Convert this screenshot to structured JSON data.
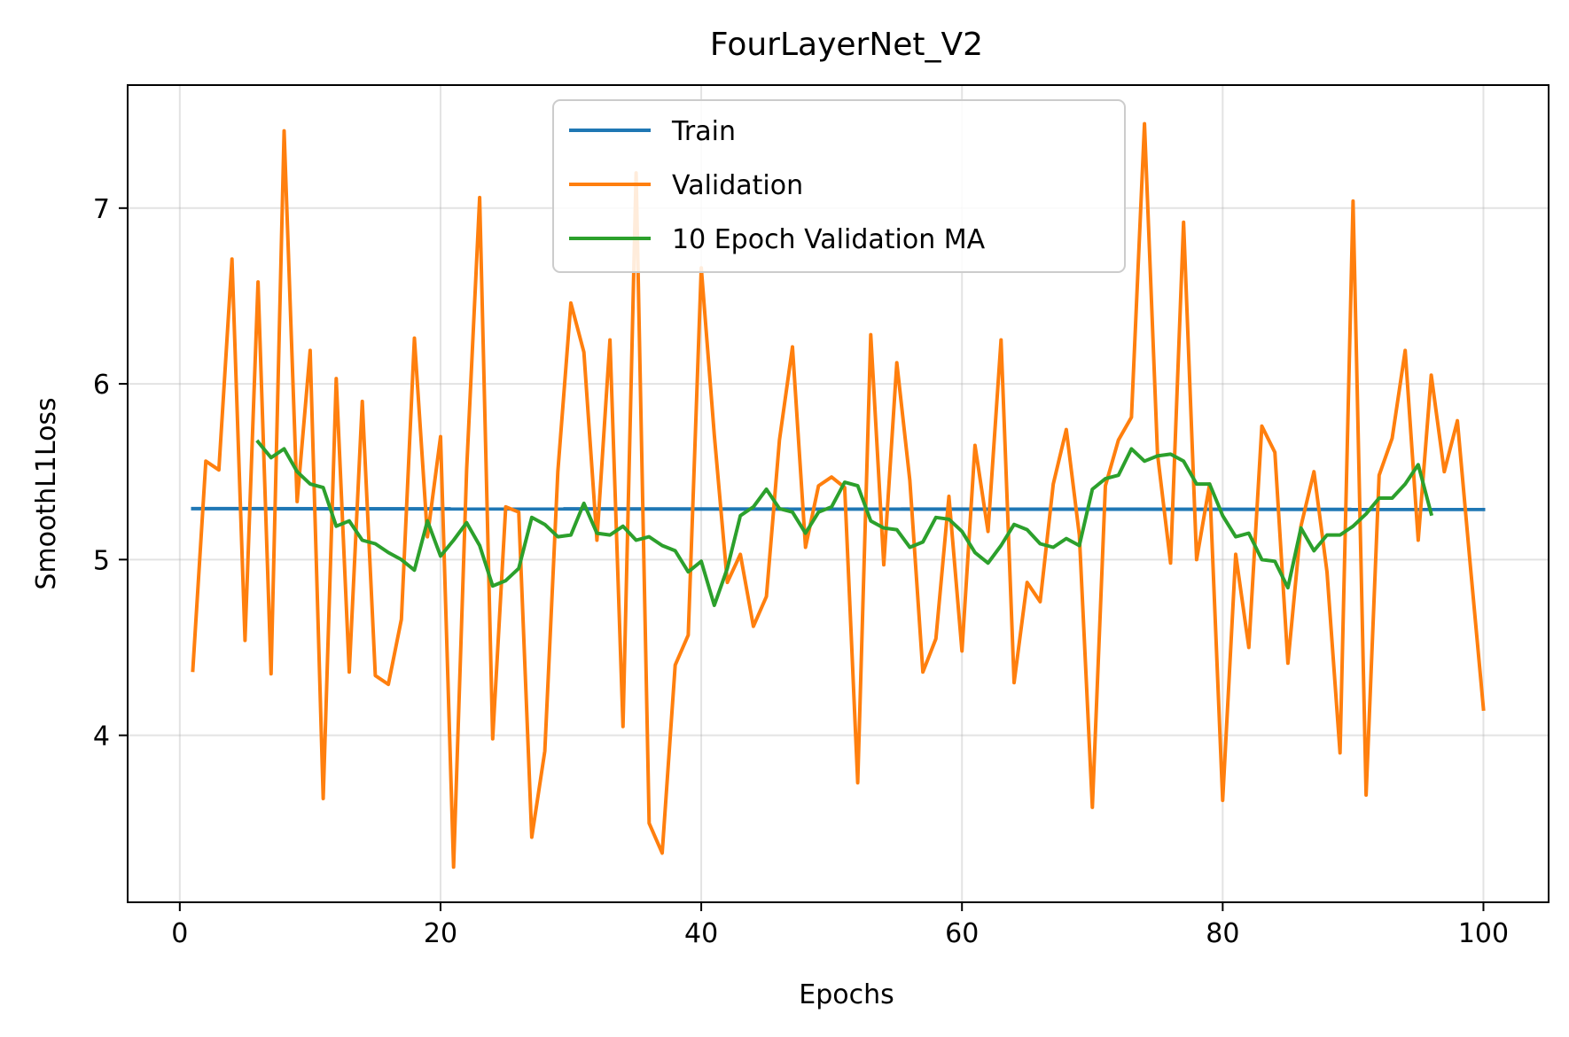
{
  "chart_data": {
    "type": "line",
    "title": "FourLayerNet_V2",
    "xlabel": "Epochs",
    "ylabel": "SmoothL1Loss",
    "xlim": [
      -4,
      105
    ],
    "ylim": [
      3.05,
      7.7
    ],
    "xticks": [
      0,
      20,
      40,
      60,
      80,
      100
    ],
    "yticks": [
      4,
      5,
      6,
      7
    ],
    "grid": true,
    "legend_position": "upper center",
    "series": [
      {
        "name": "Train",
        "color": "#1f77b4",
        "x": [
          1,
          100
        ],
        "values": [
          5.29,
          5.285
        ]
      },
      {
        "name": "Validation",
        "color": "#ff7f0e",
        "x_start": 1,
        "values": [
          4.37,
          5.56,
          5.51,
          6.71,
          4.54,
          6.58,
          4.35,
          7.44,
          5.33,
          6.19,
          3.64,
          6.03,
          4.36,
          5.9,
          4.34,
          4.29,
          4.66,
          6.26,
          5.13,
          5.7,
          3.25,
          5.51,
          7.06,
          3.98,
          5.3,
          5.27,
          3.42,
          3.91,
          5.5,
          6.46,
          6.18,
          5.11,
          6.25,
          4.05,
          7.2,
          3.5,
          3.33,
          4.4,
          4.57,
          6.66,
          5.71,
          4.87,
          5.03,
          4.62,
          4.79,
          5.68,
          6.21,
          5.07,
          5.42,
          5.47,
          5.41,
          3.73,
          6.28,
          4.97,
          6.12,
          5.45,
          4.36,
          4.55,
          5.36,
          4.48,
          5.65,
          5.16,
          6.25,
          4.3,
          4.87,
          4.76,
          5.43,
          5.74,
          5.14,
          3.59,
          5.42,
          5.68,
          5.81,
          7.48,
          5.6,
          4.98,
          6.92,
          5.0,
          5.43,
          3.63,
          5.03,
          4.5,
          5.76,
          5.61,
          4.41,
          5.19,
          5.5,
          4.93,
          3.9,
          7.04,
          3.66,
          5.48,
          5.69,
          6.19,
          5.11,
          6.05,
          5.5,
          5.79,
          4.96,
          4.15
        ]
      },
      {
        "name": "10 Epoch Validation MA",
        "color": "#2ca02c",
        "x_start": 6,
        "values": [
          5.67,
          5.58,
          5.63,
          5.5,
          5.43,
          5.41,
          5.19,
          5.22,
          5.11,
          5.09,
          5.04,
          5.0,
          4.94,
          5.22,
          5.02,
          5.11,
          5.21,
          5.08,
          4.85,
          4.88,
          4.95,
          5.24,
          5.2,
          5.13,
          5.14,
          5.32,
          5.15,
          5.14,
          5.19,
          5.11,
          5.13,
          5.08,
          5.05,
          4.93,
          4.99,
          4.74,
          4.95,
          5.25,
          5.3,
          5.4,
          5.29,
          5.27,
          5.15,
          5.27,
          5.3,
          5.44,
          5.42,
          5.22,
          5.18,
          5.17,
          5.07,
          5.1,
          5.24,
          5.23,
          5.16,
          5.04,
          4.98,
          5.08,
          5.2,
          5.17,
          5.09,
          5.07,
          5.12,
          5.08,
          5.4,
          5.46,
          5.48,
          5.63,
          5.56,
          5.59,
          5.6,
          5.56,
          5.43,
          5.43,
          5.25,
          5.13,
          5.15,
          5.0,
          4.99,
          4.84,
          5.18,
          5.05,
          5.14,
          5.14,
          5.19,
          5.26,
          5.35,
          5.35,
          5.43,
          5.54,
          5.26
        ]
      }
    ]
  }
}
